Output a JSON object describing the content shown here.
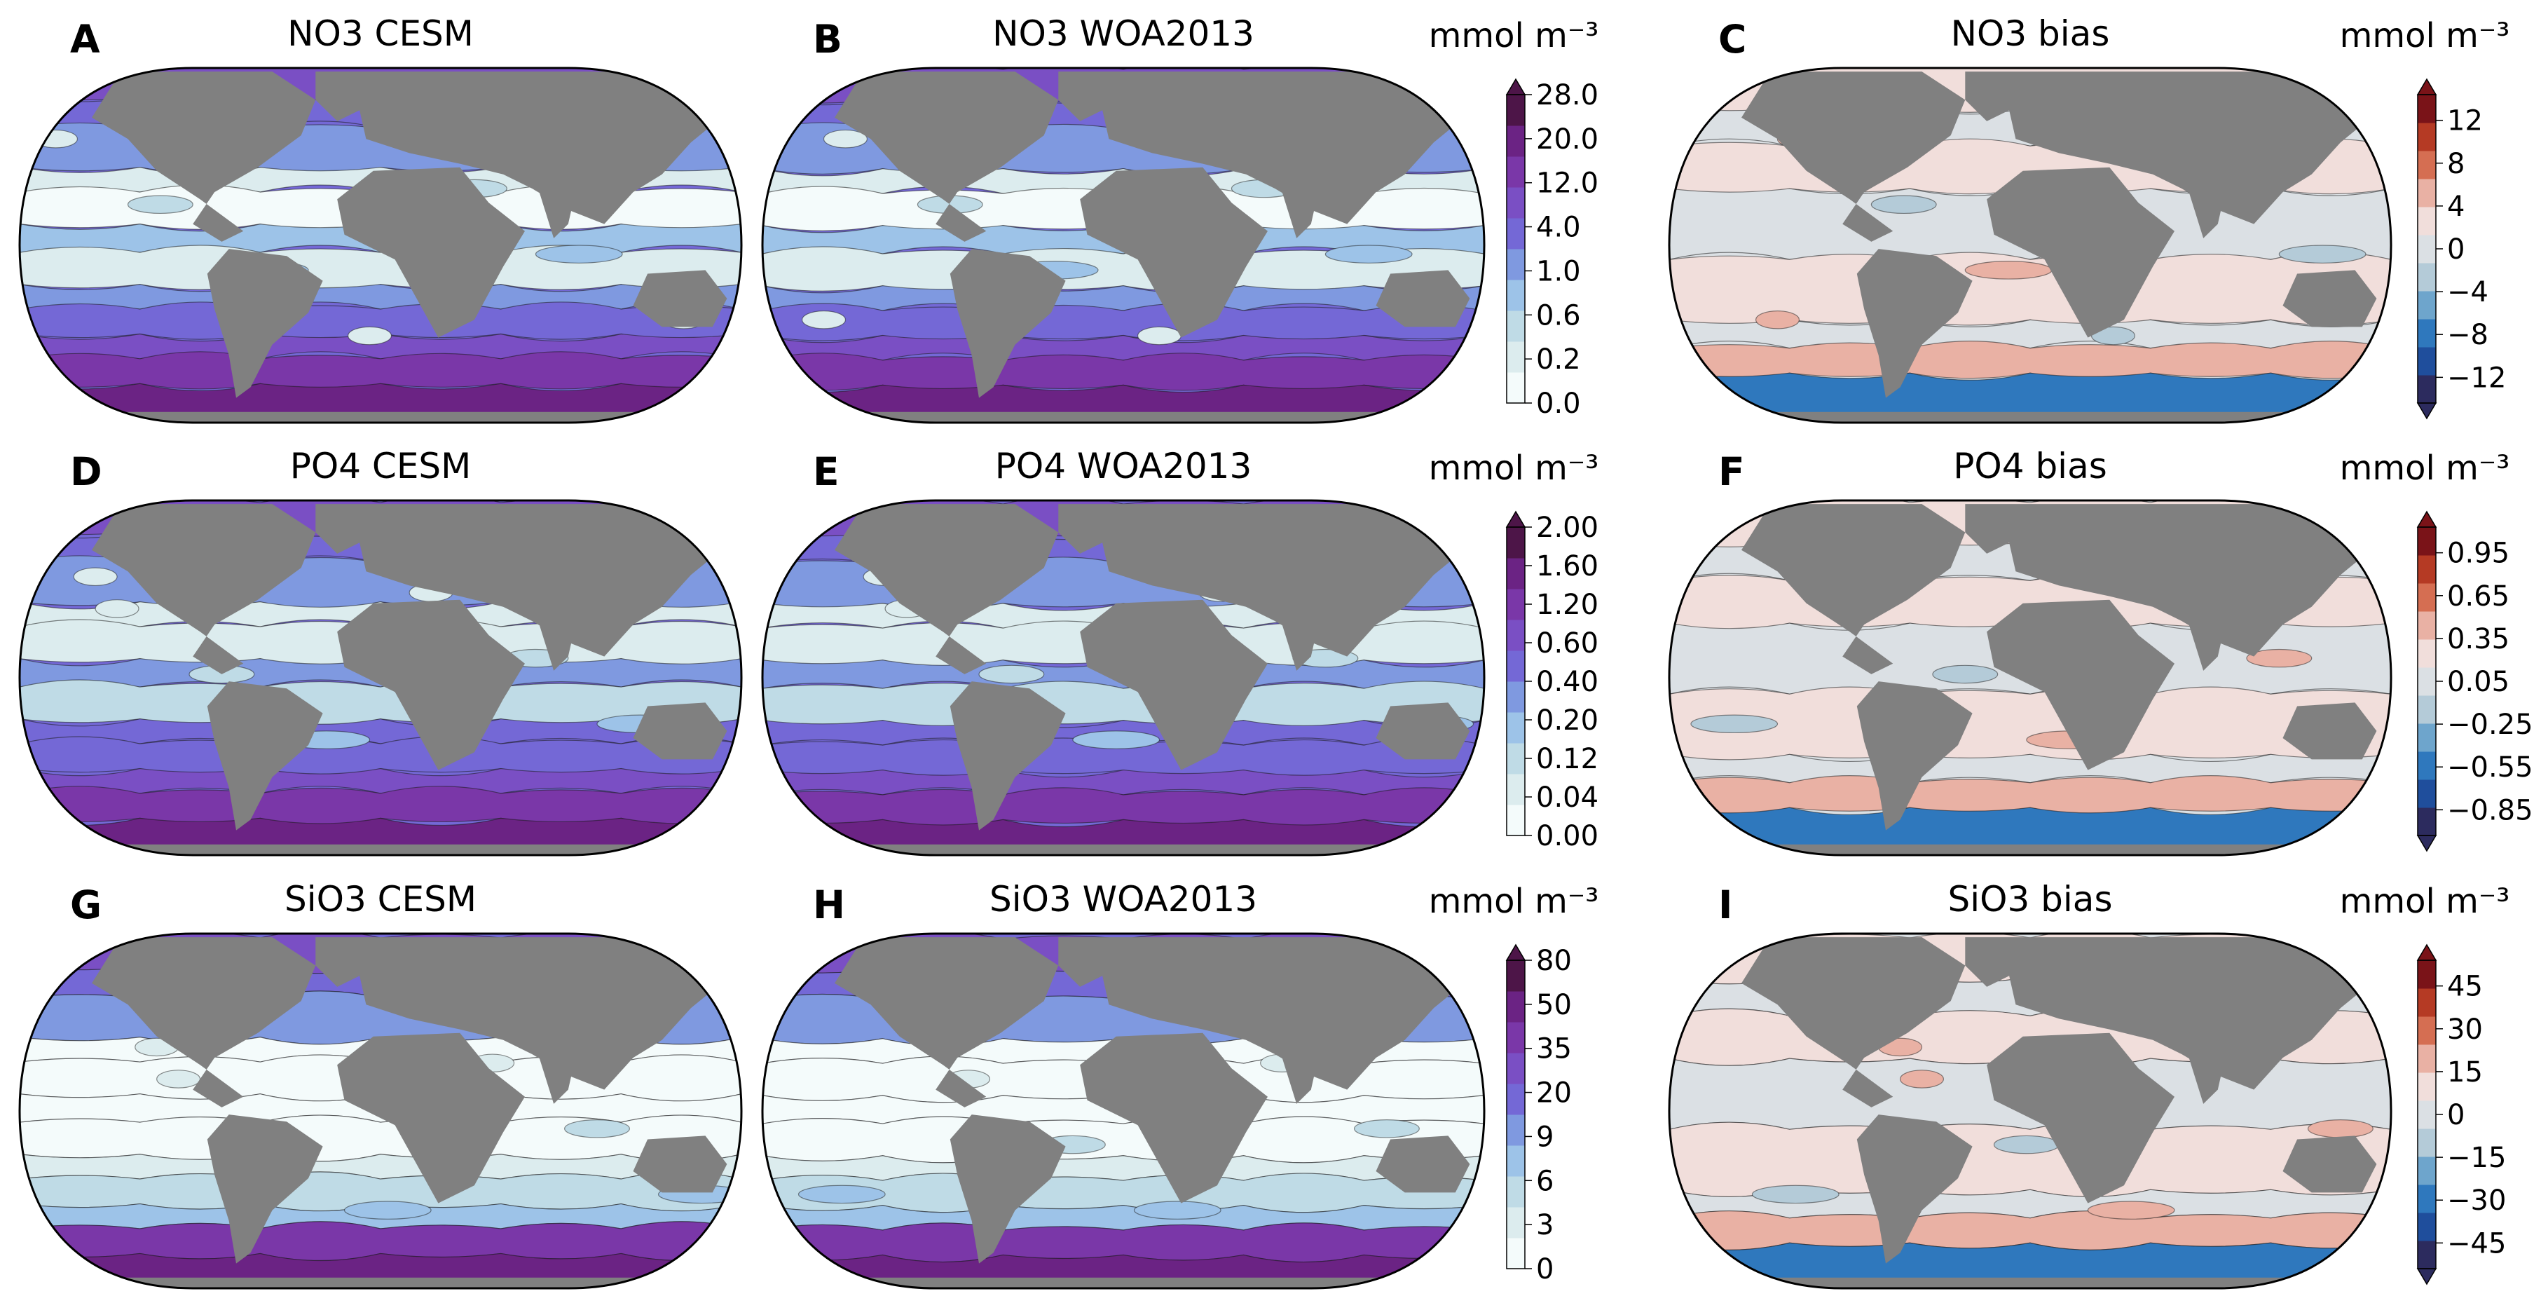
{
  "figure": {
    "rows": [
      {
        "variable": "NO3",
        "panels": [
          {
            "letter": "A",
            "title": "NO3 CESM",
            "kind": "concentration",
            "color_levels": [
              "#f4fbfb",
              "#dcecee",
              "#bfdbe6",
              "#9dc3e8",
              "#7f99e0",
              "#7468d6",
              "#7a4fc4",
              "#7a37a8",
              "#6b2384",
              "#4d1548"
            ]
          },
          {
            "letter": "B",
            "title": "NO3 WOA2013",
            "kind": "concentration",
            "color_levels": [
              "#f4fbfb",
              "#dcecee",
              "#bfdbe6",
              "#9dc3e8",
              "#7f99e0",
              "#7468d6",
              "#7a4fc4",
              "#7a37a8",
              "#6b2384",
              "#4d1548"
            ]
          },
          {
            "letter": "C",
            "title": "NO3 bias",
            "kind": "bias",
            "color_levels": [
              "#2c2b5e",
              "#1f4e9c",
              "#2f78bd",
              "#6ea5cc",
              "#b4cbd8",
              "#dbe0e4",
              "#f1dedb",
              "#e9b1a4",
              "#d56e52",
              "#b53a24",
              "#7a1318"
            ]
          }
        ],
        "colorbars": [
          {
            "unit_label": "mmol m⁻³",
            "kind": "concentration",
            "ticks": [
              "0.0",
              "0.2",
              "0.6",
              "1.0",
              "4.0",
              "12.0",
              "20.0",
              "28.0"
            ]
          },
          {
            "unit_label": "mmol m⁻³",
            "kind": "bias",
            "ticks": [
              "−12",
              "−8",
              "−4",
              "0",
              "4",
              "8",
              "12"
            ]
          }
        ]
      },
      {
        "variable": "PO4",
        "panels": [
          {
            "letter": "D",
            "title": "PO4 CESM",
            "kind": "concentration"
          },
          {
            "letter": "E",
            "title": "PO4 WOA2013",
            "kind": "concentration"
          },
          {
            "letter": "F",
            "title": "PO4 bias",
            "kind": "bias"
          }
        ],
        "colorbars": [
          {
            "unit_label": "mmol m⁻³",
            "kind": "concentration",
            "ticks": [
              "0.00",
              "0.04",
              "0.12",
              "0.20",
              "0.40",
              "0.60",
              "1.20",
              "1.60",
              "2.00"
            ]
          },
          {
            "unit_label": "mmol m⁻³",
            "kind": "bias",
            "ticks": [
              "−0.85",
              "−0.55",
              "−0.25",
              "0.05",
              "0.35",
              "0.65",
              "0.95"
            ]
          }
        ]
      },
      {
        "variable": "SiO3",
        "panels": [
          {
            "letter": "G",
            "title": "SiO3 CESM",
            "kind": "concentration"
          },
          {
            "letter": "H",
            "title": "SiO3 WOA2013",
            "kind": "concentration"
          },
          {
            "letter": "I",
            "title": "SiO3 bias",
            "kind": "bias"
          }
        ],
        "colorbars": [
          {
            "unit_label": "mmol m⁻³",
            "kind": "concentration",
            "ticks": [
              "0",
              "3",
              "6",
              "9",
              "20",
              "35",
              "50",
              "80"
            ]
          },
          {
            "unit_label": "mmol m⁻³",
            "kind": "bias",
            "ticks": [
              "−45",
              "−30",
              "−15",
              "0",
              "15",
              "30",
              "45"
            ]
          }
        ]
      }
    ],
    "land_color": "#808080",
    "outline_color": "#000000"
  }
}
